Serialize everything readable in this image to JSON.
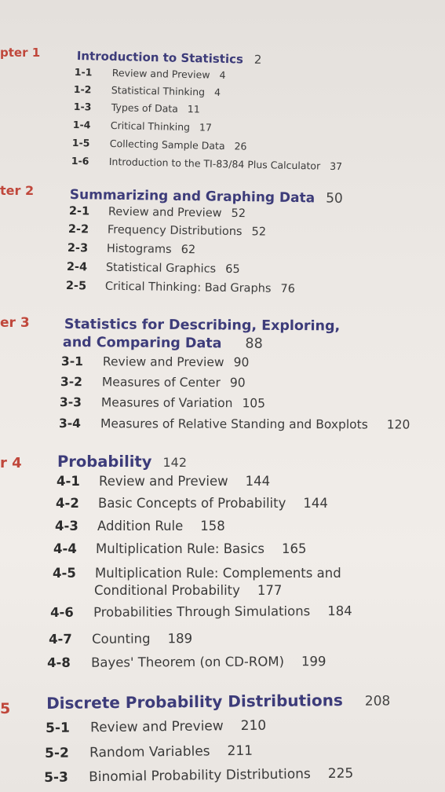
{
  "chapters": [
    {
      "label": "pter 1",
      "title": "Introduction to Statistics",
      "page": "2",
      "sections": [
        {
          "num": "1-1",
          "title": "Review and Preview",
          "page": "4"
        },
        {
          "num": "1-2",
          "title": "Statistical Thinking",
          "page": "4"
        },
        {
          "num": "1-3",
          "title": "Types of Data",
          "page": "11"
        },
        {
          "num": "1-4",
          "title": "Critical Thinking",
          "page": "17"
        },
        {
          "num": "1-5",
          "title": "Collecting Sample Data",
          "page": "26"
        },
        {
          "num": "1-6",
          "title": "Introduction to the TI-83/84 Plus Calculator",
          "page": "37"
        }
      ]
    },
    {
      "label": "ter 2",
      "title": "Summarizing and Graphing Data",
      "page": "50",
      "sections": [
        {
          "num": "2-1",
          "title": "Review and Preview",
          "page": "52"
        },
        {
          "num": "2-2",
          "title": "Frequency Distributions",
          "page": "52"
        },
        {
          "num": "2-3",
          "title": "Histograms",
          "page": "62"
        },
        {
          "num": "2-4",
          "title": "Statistical Graphics",
          "page": "65"
        },
        {
          "num": "2-5",
          "title": "Critical Thinking: Bad Graphs",
          "page": "76"
        }
      ]
    },
    {
      "label": "er 3",
      "title_line1": "Statistics for Describing, Exploring,",
      "title_line2": "and Comparing Data",
      "page": "88",
      "sections": [
        {
          "num": "3-1",
          "title": "Review and Preview",
          "page": "90"
        },
        {
          "num": "3-2",
          "title": "Measures of Center",
          "page": "90"
        },
        {
          "num": "3-3",
          "title": "Measures of Variation",
          "page": "105"
        },
        {
          "num": "3-4",
          "title": "Measures of Relative Standing and Boxplots",
          "page": "120"
        }
      ]
    },
    {
      "label": "r 4",
      "title": "Probability",
      "page": "142",
      "sections": [
        {
          "num": "4-1",
          "title": "Review and Preview",
          "page": "144"
        },
        {
          "num": "4-2",
          "title": "Basic Concepts of Probability",
          "page": "144"
        },
        {
          "num": "4-3",
          "title": "Addition Rule",
          "page": "158"
        },
        {
          "num": "4-4",
          "title": "Multiplication Rule: Basics",
          "page": "165"
        },
        {
          "num": "4-5",
          "title_line1": "Multiplication Rule: Complements and",
          "title_line2": "Conditional Probability",
          "page": "177"
        },
        {
          "num": "4-6",
          "title": "Probabilities Through Simulations",
          "page": "184"
        },
        {
          "num": "4-7",
          "title": "Counting",
          "page": "189"
        },
        {
          "num": "4-8",
          "title": "Bayes' Theorem (on CD-ROM)",
          "page": "199"
        }
      ]
    },
    {
      "label": "5",
      "title": "Discrete Probability Distributions",
      "page": "208",
      "sections": [
        {
          "num": "5-1",
          "title": "Review and Preview",
          "page": "210"
        },
        {
          "num": "5-2",
          "title": "Random Variables",
          "page": "211"
        },
        {
          "num": "5-3",
          "title": "Binomial Probability Distributions",
          "page": "225"
        }
      ]
    }
  ]
}
